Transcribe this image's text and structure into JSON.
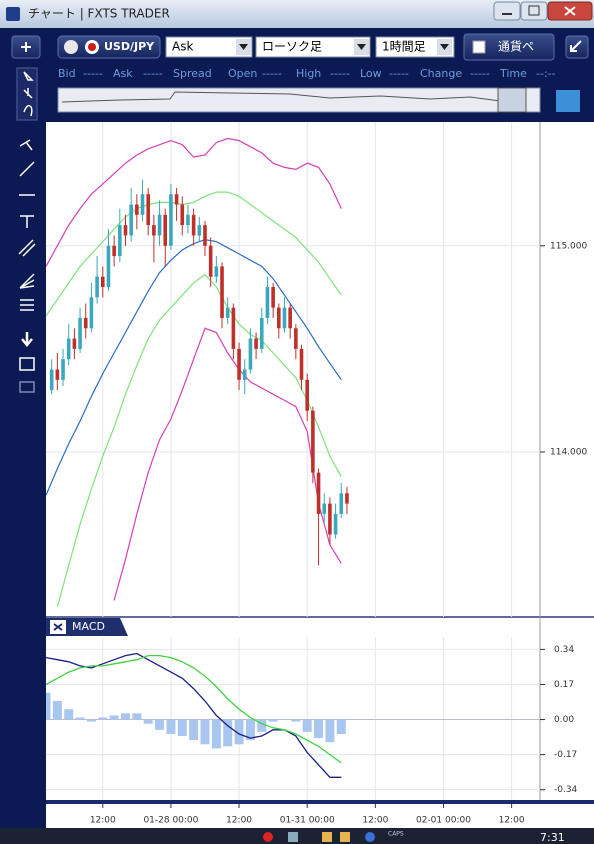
{
  "window": {
    "title": "チャート | FXTS TRADER"
  },
  "toolbar": {
    "symbol": "USD/JPY",
    "price_side": "Ask",
    "chart_style": "ローソク足",
    "timeframe": "1時間足",
    "pair_button": "通貨ペ"
  },
  "quote_bar": {
    "items": [
      "Bid",
      "-----",
      "Ask",
      "-----",
      "Spread",
      "Open",
      "-----",
      "High",
      "-----",
      "Low",
      "-----",
      "Change",
      "-----",
      "Time",
      "--:--"
    ]
  },
  "chart_data": [
    {
      "type": "candlestick",
      "x": [
        1,
        2,
        3,
        4,
        5,
        6,
        7,
        8,
        9,
        10,
        11,
        12,
        13,
        14,
        15,
        16,
        17,
        18,
        19,
        20,
        21,
        22,
        23,
        24,
        25,
        26,
        27,
        28,
        29,
        30,
        31,
        32,
        33,
        34,
        35,
        36,
        37,
        38,
        39,
        40,
        41,
        42,
        43,
        44,
        45,
        46,
        47,
        48,
        49,
        50,
        51,
        52,
        53
      ],
      "open": [
        114.3,
        114.4,
        114.35,
        114.45,
        114.55,
        114.5,
        114.65,
        114.6,
        114.75,
        114.85,
        114.8,
        115.0,
        114.95,
        115.1,
        115.05,
        115.2,
        115.15,
        115.25,
        115.1,
        115.05,
        115.15,
        115.0,
        115.25,
        115.2,
        115.1,
        115.15,
        115.05,
        115.1,
        115.0,
        114.85,
        114.9,
        114.65,
        114.7,
        114.5,
        114.35,
        114.4,
        114.55,
        114.5,
        114.65,
        114.8,
        114.7,
        114.6,
        114.7,
        114.6,
        114.5,
        114.35,
        114.2,
        113.9,
        113.7,
        113.75,
        113.6,
        113.7,
        113.8
      ],
      "high": [
        114.45,
        114.48,
        114.5,
        114.62,
        114.6,
        114.7,
        114.72,
        114.82,
        114.95,
        114.9,
        115.08,
        115.05,
        115.18,
        115.15,
        115.28,
        115.25,
        115.32,
        115.28,
        115.15,
        115.22,
        115.18,
        115.3,
        115.28,
        115.24,
        115.2,
        115.18,
        115.14,
        115.12,
        115.04,
        114.95,
        114.92,
        114.75,
        114.72,
        114.53,
        114.45,
        114.6,
        114.58,
        114.7,
        114.85,
        114.82,
        114.72,
        114.75,
        114.72,
        114.62,
        114.52,
        114.38,
        114.22,
        113.92,
        113.8,
        113.78,
        113.75,
        113.85,
        113.83
      ],
      "low": [
        114.28,
        114.3,
        114.32,
        114.42,
        114.45,
        114.48,
        114.55,
        114.58,
        114.72,
        114.75,
        114.78,
        114.9,
        114.92,
        115.0,
        115.02,
        115.08,
        115.12,
        115.05,
        114.92,
        115.0,
        114.9,
        114.98,
        115.12,
        115.05,
        115.06,
        115.0,
        115.02,
        114.95,
        114.8,
        114.82,
        114.6,
        114.62,
        114.45,
        114.3,
        114.28,
        114.38,
        114.45,
        114.48,
        114.62,
        114.65,
        114.55,
        114.58,
        114.55,
        114.45,
        114.3,
        114.15,
        113.85,
        113.45,
        113.65,
        113.55,
        113.58,
        113.68,
        113.7
      ],
      "close": [
        114.4,
        114.35,
        114.45,
        114.55,
        114.5,
        114.65,
        114.6,
        114.75,
        114.85,
        114.8,
        115.0,
        114.95,
        115.1,
        115.05,
        115.2,
        115.15,
        115.25,
        115.1,
        115.05,
        115.15,
        115.0,
        115.25,
        115.2,
        115.1,
        115.15,
        115.05,
        115.1,
        115.0,
        114.85,
        114.9,
        114.65,
        114.7,
        114.5,
        114.35,
        114.4,
        114.55,
        114.5,
        114.65,
        114.8,
        114.7,
        114.6,
        114.7,
        114.6,
        114.5,
        114.35,
        114.2,
        113.9,
        113.7,
        113.75,
        113.6,
        113.7,
        113.8,
        113.75
      ],
      "up_color": "#3aa8bc",
      "down_color": "#c0302b",
      "line_x": [
        0,
        2,
        4,
        6,
        8,
        10,
        12,
        14,
        16,
        18,
        20,
        22,
        24,
        26,
        28,
        30,
        32,
        34,
        36,
        38,
        40,
        42,
        44,
        46,
        48,
        50,
        52
      ],
      "lines": [
        {
          "color": "#d63fb4",
          "values": [
            114.9,
            115.0,
            115.1,
            115.18,
            115.25,
            115.3,
            115.35,
            115.4,
            115.44,
            115.47,
            115.49,
            115.51,
            115.49,
            115.43,
            115.44,
            115.5,
            115.52,
            115.51,
            115.48,
            115.45,
            115.4,
            115.38,
            115.37,
            115.4,
            115.38,
            115.3,
            115.18
          ]
        },
        {
          "color": "#7ee37a",
          "values": [
            114.66,
            114.74,
            114.82,
            114.9,
            114.96,
            115.02,
            115.08,
            115.14,
            115.18,
            115.2,
            115.21,
            115.21,
            115.2,
            115.21,
            115.24,
            115.26,
            115.26,
            115.24,
            115.2,
            115.16,
            115.12,
            115.08,
            115.04,
            114.98,
            114.92,
            114.84,
            114.76
          ]
        },
        {
          "color": "#2b6cc4",
          "values": [
            113.79,
            113.92,
            114.04,
            114.15,
            114.27,
            114.38,
            114.48,
            114.58,
            114.68,
            114.78,
            114.87,
            114.93,
            114.98,
            115.01,
            115.03,
            115.02,
            114.99,
            114.96,
            114.93,
            114.9,
            114.84,
            114.76,
            114.68,
            114.6,
            114.51,
            114.43,
            114.35
          ]
        },
        {
          "color": "#7ee37a",
          "values": [
            null,
            113.25,
            113.45,
            113.65,
            113.82,
            113.98,
            114.12,
            114.28,
            114.42,
            114.55,
            114.64,
            114.7,
            114.76,
            114.82,
            114.86,
            114.8,
            114.7,
            114.62,
            114.57,
            114.54,
            114.48,
            114.42,
            114.36,
            114.25,
            114.12,
            113.98,
            113.88
          ]
        },
        {
          "color": "#d63fb4",
          "values": [
            null,
            null,
            null,
            null,
            null,
            null,
            113.28,
            113.48,
            113.7,
            113.9,
            114.06,
            114.16,
            114.3,
            114.45,
            114.6,
            114.58,
            114.48,
            114.4,
            114.34,
            114.31,
            114.28,
            114.25,
            114.22,
            114.1,
            113.75,
            113.55,
            113.46
          ]
        }
      ],
      "xlim": [
        0,
        87
      ],
      "ylim": [
        113.2,
        115.6
      ],
      "yticks": [
        {
          "value": 114,
          "label": "114.000"
        },
        {
          "value": 115,
          "label": "115.000"
        }
      ]
    },
    {
      "type": "macd",
      "title": "MACD",
      "x": [
        0,
        2,
        4,
        6,
        8,
        10,
        12,
        14,
        16,
        18,
        20,
        22,
        24,
        26,
        28,
        30,
        32,
        34,
        36,
        38,
        40,
        42,
        44,
        46,
        48,
        50,
        52
      ],
      "series": [
        {
          "color": "#1c1f8a",
          "values": [
            0.3,
            0.29,
            0.28,
            0.26,
            0.25,
            0.27,
            0.29,
            0.31,
            0.32,
            0.29,
            0.26,
            0.23,
            0.2,
            0.15,
            0.09,
            0.02,
            -0.03,
            -0.07,
            -0.09,
            -0.08,
            -0.05,
            -0.05,
            -0.08,
            -0.16,
            -0.22,
            -0.28,
            -0.28
          ]
        },
        {
          "color": "#3fd23f",
          "values": [
            0.17,
            0.2,
            0.23,
            0.25,
            0.26,
            0.26,
            0.27,
            0.28,
            0.29,
            0.31,
            0.31,
            0.3,
            0.28,
            0.25,
            0.21,
            0.16,
            0.1,
            0.05,
            0.01,
            -0.02,
            -0.04,
            -0.05,
            -0.07,
            -0.1,
            -0.13,
            -0.17,
            -0.21
          ]
        }
      ],
      "histogram": {
        "color": "#a9c6f0",
        "values": [
          0.13,
          0.09,
          0.05,
          0.01,
          -0.01,
          0.01,
          0.02,
          0.03,
          0.03,
          -0.02,
          -0.05,
          -0.07,
          -0.08,
          -0.1,
          -0.12,
          -0.14,
          -0.13,
          -0.12,
          -0.1,
          -0.06,
          -0.01,
          0.0,
          -0.01,
          -0.06,
          -0.09,
          -0.11,
          -0.07
        ]
      },
      "xlim": [
        0,
        87
      ],
      "ylim": [
        -0.39,
        0.4
      ],
      "yticks": [
        0.34,
        0.17,
        {
          "value": 0,
          "label": "0.00"
        },
        -0.17,
        -0.34
      ],
      "xticks": [
        {
          "value": 10,
          "label": "12:00"
        },
        {
          "value": 22,
          "label": "01-28 00:00"
        },
        {
          "value": 34,
          "label": "12:00"
        },
        {
          "value": 46,
          "label": "01-31 00:00"
        },
        {
          "value": 58,
          "label": "12:00"
        },
        {
          "value": 70,
          "label": "02-01 00:00"
        },
        {
          "value": 82,
          "label": "12:00"
        }
      ]
    }
  ],
  "taskbar": {
    "caps": "CAPS",
    "clock": "7:31"
  }
}
